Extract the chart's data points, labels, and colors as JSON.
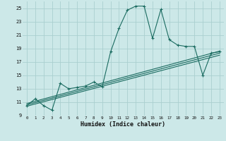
{
  "xlabel": "Humidex (Indice chaleur)",
  "bg_color": "#cce8e8",
  "grid_color": "#aacfcf",
  "line_color": "#1a6b60",
  "xlim": [
    -0.5,
    23.5
  ],
  "ylim": [
    9,
    26
  ],
  "xticks": [
    0,
    1,
    2,
    3,
    4,
    5,
    6,
    7,
    8,
    9,
    10,
    11,
    12,
    13,
    14,
    15,
    16,
    17,
    18,
    19,
    20,
    21,
    22,
    23
  ],
  "yticks": [
    9,
    11,
    13,
    15,
    17,
    19,
    21,
    23,
    25
  ],
  "main_x": [
    0,
    1,
    2,
    3,
    4,
    5,
    6,
    7,
    8,
    9,
    10,
    11,
    12,
    13,
    14,
    15,
    16,
    17,
    18,
    19,
    20,
    21,
    22,
    23
  ],
  "main_y": [
    10.5,
    11.5,
    10.5,
    9.8,
    13.8,
    13.0,
    13.2,
    13.4,
    14.0,
    13.3,
    18.5,
    22.0,
    24.7,
    25.3,
    25.3,
    20.5,
    24.8,
    20.3,
    19.5,
    19.3,
    19.3,
    15.0,
    18.3,
    18.5
  ],
  "trend1_x": [
    0,
    23
  ],
  "trend1_y": [
    10.4,
    18.0
  ],
  "trend2_x": [
    0,
    23
  ],
  "trend2_y": [
    10.6,
    18.3
  ],
  "trend3_x": [
    0,
    23
  ],
  "trend3_y": [
    10.8,
    18.6
  ]
}
